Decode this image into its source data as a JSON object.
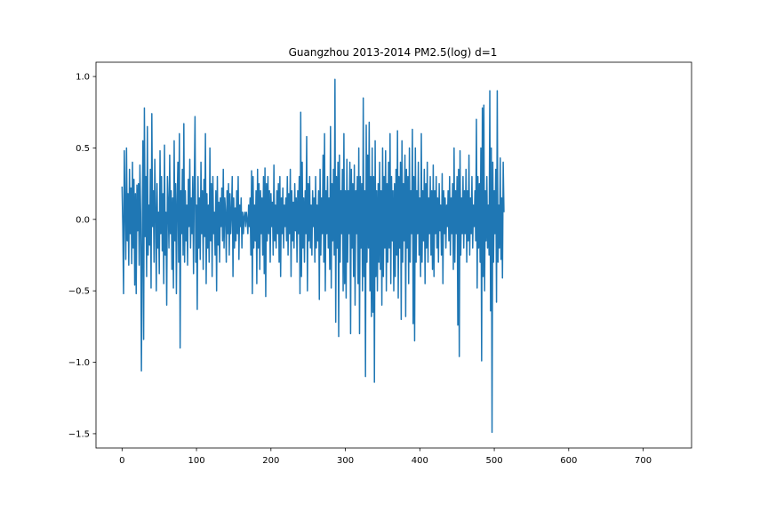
{
  "chart_data": {
    "type": "line",
    "title": "Guangzhou 2013-2014 PM2.5(log) d=1",
    "xlabel": "",
    "ylabel": "",
    "xlim": [
      -35,
      765
    ],
    "ylim": [
      -1.6,
      1.1
    ],
    "xticks": [
      0,
      100,
      200,
      300,
      400,
      500,
      600,
      700
    ],
    "yticks": [
      -1.5,
      -1.0,
      -0.5,
      0.0,
      0.5,
      1.0
    ],
    "xtick_labels": [
      "0",
      "100",
      "200",
      "300",
      "400",
      "500",
      "600",
      "700"
    ],
    "ytick_labels": [
      "−1.5",
      "−1.0",
      "−0.5",
      "0.0",
      "0.5",
      "1.0"
    ],
    "grid": false,
    "series": [
      {
        "color": "#1f77b4",
        "x_start": 0,
        "x_step": 1,
        "values": [
          0.23,
          -0.05,
          -0.52,
          0.48,
          0.1,
          -0.28,
          0.5,
          -0.15,
          0.18,
          -0.32,
          0.35,
          -0.1,
          0.22,
          -0.31,
          0.4,
          -0.2,
          0.28,
          -0.46,
          0.18,
          -0.52,
          0.24,
          -0.08,
          0.25,
          -0.32,
          0.38,
          0.05,
          -1.06,
          -0.2,
          0.55,
          -0.84,
          0.78,
          -0.12,
          0.3,
          -0.4,
          0.65,
          -0.25,
          0.1,
          -0.18,
          0.35,
          -0.48,
          0.74,
          -0.05,
          0.2,
          -0.3,
          0.42,
          0.08,
          -0.5,
          0.25,
          -0.2,
          0.05,
          -0.38,
          0.48,
          -0.1,
          0.3,
          -0.22,
          0.18,
          -0.45,
          0.52,
          -0.25,
          0.05,
          -0.6,
          0.3,
          0.1,
          -0.2,
          0.45,
          -0.1,
          0.2,
          -0.35,
          0.15,
          -0.48,
          0.55,
          -0.15,
          0.25,
          -0.52,
          0.12,
          0.4,
          -0.3,
          0.6,
          -0.9,
          0.2,
          -0.1,
          0.35,
          -0.25,
          0.67,
          -0.3,
          0.2,
          -0.15,
          0.1,
          -0.32,
          0.28,
          -0.05,
          0.42,
          -0.2,
          0.15,
          -0.1,
          0.3,
          -0.38,
          0.22,
          0.72,
          -0.3,
          0.1,
          -0.63,
          0.3,
          -0.2,
          0.15,
          -0.28,
          0.4,
          -0.1,
          0.2,
          -0.35,
          0.28,
          -0.12,
          0.6,
          -0.45,
          0.18,
          -0.2,
          0.1,
          -0.3,
          0.5,
          -0.15,
          0.25,
          -0.4,
          0.3,
          -0.1,
          0.05,
          -0.25,
          0.2,
          -0.5,
          0.3,
          -0.18,
          0.12,
          -0.3,
          0.15,
          -0.05,
          0.22,
          -0.15,
          0.35,
          -0.2,
          0.15,
          0.05,
          -0.3,
          0.2,
          -0.1,
          0.25,
          -0.25,
          0.18,
          -0.1,
          0.05,
          0.3,
          -0.4,
          0.15,
          -0.2,
          0.08,
          -0.15,
          0.2,
          -0.1,
          0.3,
          -0.28,
          0.1,
          -0.05,
          0.15,
          -0.2,
          0.05,
          -0.1,
          0.02,
          0.05,
          -0.05,
          0.05,
          0.0,
          -0.1,
          0.1,
          -0.05,
          0.15,
          -0.25,
          0.34,
          -0.52,
          0.3,
          -0.2,
          0.1,
          -0.15,
          0.2,
          -0.45,
          0.35,
          -0.2,
          0.25,
          -0.35,
          0.2,
          -0.1,
          0.15,
          -0.25,
          0.3,
          -0.38,
          0.36,
          -0.54,
          0.25,
          -0.15,
          0.3,
          -0.1,
          0.2,
          -0.3,
          0.18,
          -0.05,
          0.12,
          -0.25,
          0.38,
          -0.15,
          0.1,
          -0.2,
          0.2,
          -0.1,
          0.25,
          -0.3,
          0.3,
          -0.4,
          0.15,
          -0.1,
          0.22,
          -0.2,
          0.1,
          -0.05,
          0.15,
          -0.15,
          0.3,
          -0.25,
          0.18,
          -0.1,
          0.35,
          -0.4,
          0.2,
          -0.15,
          0.12,
          -0.2,
          0.25,
          -0.08,
          0.15,
          -0.3,
          0.2,
          -0.1,
          0.3,
          -0.52,
          0.75,
          -0.4,
          0.4,
          -0.2,
          0.15,
          -0.3,
          0.2,
          -0.1,
          0.58,
          -0.5,
          0.25,
          -0.15,
          0.3,
          -0.2,
          0.1,
          -0.25,
          0.2,
          -0.05,
          0.15,
          -0.3,
          0.3,
          -0.2,
          0.1,
          -0.15,
          0.2,
          -0.56,
          0.35,
          -0.25,
          0.15,
          -0.1,
          0.45,
          -0.3,
          0.6,
          -0.5,
          0.2,
          -0.1,
          0.3,
          -0.2,
          0.15,
          -0.35,
          0.65,
          -0.48,
          0.25,
          -0.15,
          0.35,
          -0.25,
          0.98,
          -0.72,
          0.3,
          -0.2,
          0.4,
          -0.82,
          0.45,
          -0.3,
          0.2,
          -0.1,
          0.35,
          -0.5,
          0.6,
          -0.45,
          0.2,
          -0.55,
          0.42,
          -0.3,
          0.2,
          -0.1,
          0.4,
          -0.8,
          0.35,
          -0.2,
          0.25,
          -0.4,
          0.38,
          -0.6,
          0.2,
          -0.1,
          0.3,
          -0.45,
          0.5,
          -0.8,
          0.3,
          -0.2,
          0.25,
          -0.5,
          0.85,
          -0.4,
          0.2,
          -1.1,
          0.66,
          -0.3,
          0.45,
          -0.2,
          0.68,
          -0.5,
          0.3,
          -0.68,
          0.5,
          -0.65,
          0.3,
          -1.14,
          0.55,
          -0.4,
          0.2,
          -0.5,
          0.25,
          -0.3,
          0.4,
          -0.35,
          0.2,
          -0.6,
          0.5,
          -0.4,
          0.3,
          -0.2,
          0.48,
          -0.5,
          0.25,
          -0.3,
          0.4,
          -0.2,
          0.6,
          -0.45,
          0.3,
          -0.15,
          0.2,
          -0.5,
          0.25,
          -0.4,
          0.35,
          -0.25,
          0.62,
          -0.55,
          0.3,
          -0.2,
          0.4,
          -0.7,
          0.55,
          -0.3,
          0.25,
          -0.15,
          0.45,
          -0.68,
          0.35,
          -0.2,
          0.3,
          -0.45,
          0.5,
          -0.3,
          0.2,
          -0.1,
          0.63,
          -0.73,
          0.3,
          -0.85,
          0.5,
          -0.3,
          0.2,
          -0.1,
          0.4,
          -0.25,
          0.15,
          -0.4,
          0.6,
          -0.3,
          0.2,
          -0.15,
          0.35,
          -0.45,
          0.25,
          -0.2,
          0.4,
          -0.3,
          0.15,
          -0.1,
          0.3,
          -0.25,
          0.2,
          -0.35,
          0.38,
          -0.4,
          0.2,
          -0.1,
          0.3,
          -0.2,
          0.15,
          -0.3,
          0.25,
          -0.08,
          0.1,
          -0.25,
          0.32,
          -0.45,
          0.2,
          -0.1,
          0.15,
          -0.2,
          0.1,
          -0.05,
          0.2,
          -0.15,
          0.3,
          -0.25,
          0.15,
          -0.1,
          0.25,
          -0.35,
          0.5,
          -0.3,
          0.2,
          -0.1,
          0.3,
          -0.74,
          0.35,
          -0.96,
          0.48,
          -0.25,
          0.15,
          -0.1,
          0.3,
          -0.2,
          0.2,
          -0.1,
          0.35,
          -0.3,
          0.2,
          -0.15,
          0.45,
          -0.25,
          0.15,
          -0.1,
          0.3,
          -0.2,
          0.1,
          -0.05,
          0.2,
          -0.15,
          0.7,
          -0.48,
          0.3,
          -0.2,
          0.25,
          -0.3,
          0.5,
          -0.99,
          0.78,
          -0.4,
          0.8,
          -0.5,
          0.2,
          -0.15,
          0.3,
          -0.2,
          0.1,
          -0.25,
          0.9,
          -0.64,
          0.5,
          -1.49,
          0.4,
          -0.3,
          0.2,
          -0.1,
          0.35,
          -0.58,
          0.9,
          -0.3,
          0.1,
          -0.2,
          0.43,
          -0.28,
          0.15,
          -0.41,
          0.4,
          0.05
        ]
      }
    ]
  }
}
